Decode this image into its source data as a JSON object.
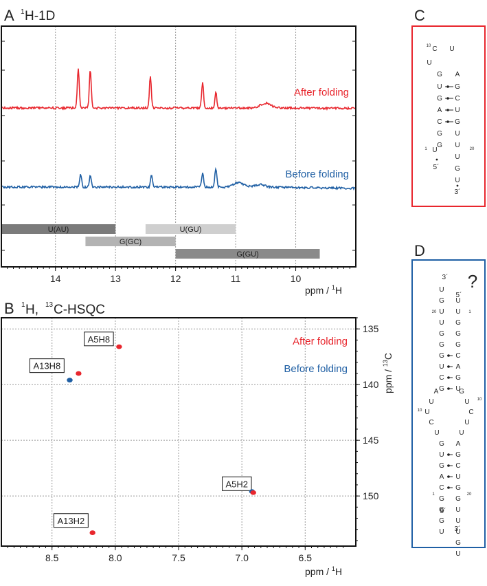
{
  "chart_data": [
    {
      "type": "line",
      "panel": "A",
      "title": "1H-1D",
      "title_letter": "A",
      "title_sup": "1",
      "title_rest": "H-1D",
      "xlabel": "ppm / 1H",
      "xlabel_main": "ppm / ",
      "xlabel_sup": "1",
      "xlabel_tail": "H",
      "xlim": [
        14.9,
        9.0
      ],
      "xticks": [
        "14",
        "13",
        "12",
        "11",
        "10"
      ],
      "xtick_values": [
        14,
        13,
        12,
        11,
        10
      ],
      "series": [
        {
          "name": "After folding",
          "color": "#e8262d",
          "baseline": 0.0,
          "peaks": [
            [
              13.62,
              1.0
            ],
            [
              13.42,
              0.95
            ],
            [
              12.42,
              0.8
            ],
            [
              11.55,
              0.66
            ],
            [
              11.33,
              0.42
            ],
            [
              10.5,
              0.12
            ]
          ]
        },
        {
          "name": "Before folding",
          "color": "#1f5fa4",
          "baseline": 0.0,
          "peaks": [
            [
              13.58,
              0.42
            ],
            [
              13.42,
              0.36
            ],
            [
              12.4,
              0.4
            ],
            [
              11.55,
              0.46
            ],
            [
              11.33,
              0.62
            ],
            [
              10.95,
              0.14
            ],
            [
              10.6,
              0.08
            ]
          ]
        }
      ],
      "ranges": [
        {
          "label": "U(AU)",
          "from": 14.9,
          "to": 13.0,
          "color": "#7b7b7b"
        },
        {
          "label": "U(GU)",
          "from": 12.5,
          "to": 11.0,
          "color": "#cfcfcf"
        },
        {
          "label": "G(GC)",
          "from": 13.5,
          "to": 12.0,
          "color": "#b3b3b3"
        },
        {
          "label": "G(GU)",
          "from": 12.0,
          "to": 9.6,
          "color": "#8a8a8a"
        }
      ]
    },
    {
      "type": "scatter",
      "panel": "B",
      "title_letter": "B",
      "title_part1": "H,",
      "title_sup1": "1",
      "title_sup2": "13",
      "title_part2": "C-HSQC",
      "xlabel_main": "ppm / ",
      "xlabel_sup": "1",
      "xlabel_tail": "H",
      "ylabel_main": "ppm / ",
      "ylabel_sup": "13",
      "ylabel_tail": "C",
      "xlim": [
        8.9,
        6.1
      ],
      "ylim": [
        134.0,
        154.5
      ],
      "xticks": [
        "8.5",
        "8.0",
        "7.5",
        "7.0",
        "6.5"
      ],
      "xtick_values": [
        8.5,
        8.0,
        7.5,
        7.0,
        6.5
      ],
      "yticks": [
        "135",
        "140",
        "145",
        "150"
      ],
      "ytick_values": [
        135,
        140,
        145,
        150
      ],
      "series": [
        {
          "name": "After folding",
          "color": "#e8262d",
          "points": [
            [
              7.97,
              136.6
            ],
            [
              8.29,
              139.0
            ],
            [
              6.91,
              149.7
            ],
            [
              8.18,
              153.3
            ]
          ]
        },
        {
          "name": "Before folding",
          "color": "#1f5fa4",
          "points": [
            [
              8.36,
              139.6
            ],
            [
              6.92,
              149.6
            ]
          ]
        }
      ],
      "annotations": [
        {
          "text": "A5H8",
          "x": 8.13,
          "y": 135.9
        },
        {
          "text": "A13H8",
          "x": 8.54,
          "y": 138.3
        },
        {
          "text": "A5H2",
          "x": 7.04,
          "y": 148.9
        },
        {
          "text": "A13H2",
          "x": 8.35,
          "y": 152.2
        }
      ]
    }
  ],
  "panel_c": {
    "letter": "C",
    "color": "#e8262d",
    "loop_index": "10",
    "index_20": "20",
    "tick_1": "1",
    "five_prime": "5´",
    "three_prime": "3´"
  },
  "panel_d": {
    "letter": "D",
    "color": "#1f5fa4",
    "question": "?",
    "idx_20": "20",
    "idx_1": "1",
    "idx_10": "10",
    "five_prime": "5´",
    "three_prime": "3´"
  }
}
